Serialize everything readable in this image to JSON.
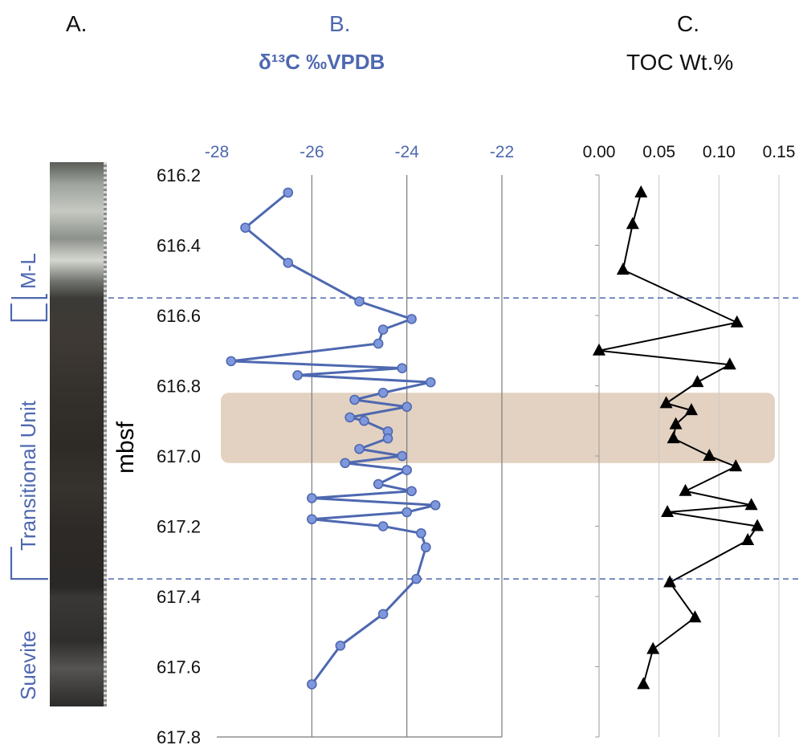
{
  "panels": {
    "a_letter": "A.",
    "b_letter": "B.",
    "b_title": "δ¹³C  ‰VPDB",
    "c_letter": "C.",
    "c_title": "TOC Wt.%"
  },
  "units": {
    "ml": "M-L",
    "transitional": "Transitional Unit",
    "suevite": "Suevite"
  },
  "colors": {
    "d13c_series": "#4e68b0",
    "toc_series": "#000000",
    "highlight_band": "#d9c3ac",
    "boundary_line": "#4e68b0"
  },
  "chart_data": [
    {
      "type": "line",
      "title": "δ¹³C  ‰VPDB",
      "ylabel": "mbsf",
      "xlim": [
        -28,
        -22
      ],
      "ylim": [
        617.8,
        616.2
      ],
      "x_ticks": [
        "-28",
        "-26",
        "-24",
        "-22"
      ],
      "y_ticks": [
        "616.2",
        "616.4",
        "616.6",
        "616.8",
        "617.0",
        "617.2",
        "617.4",
        "617.6",
        "617.8"
      ],
      "grid": true,
      "series": [
        {
          "marker": "circle",
          "points": [
            [
              -26.5,
              616.25
            ],
            [
              -27.4,
              616.35
            ],
            [
              -26.5,
              616.45
            ],
            [
              -25.0,
              616.56
            ],
            [
              -23.9,
              616.61
            ],
            [
              -24.5,
              616.64
            ],
            [
              -24.6,
              616.68
            ],
            [
              -27.7,
              616.73
            ],
            [
              -24.1,
              616.75
            ],
            [
              -26.3,
              616.77
            ],
            [
              -23.5,
              616.79
            ],
            [
              -24.5,
              616.82
            ],
            [
              -25.1,
              616.84
            ],
            [
              -24.0,
              616.86
            ],
            [
              -25.2,
              616.89
            ],
            [
              -24.9,
              616.9
            ],
            [
              -24.4,
              616.93
            ],
            [
              -24.4,
              616.95
            ],
            [
              -25.0,
              616.98
            ],
            [
              -24.1,
              617.0
            ],
            [
              -25.3,
              617.02
            ],
            [
              -24.0,
              617.04
            ],
            [
              -24.6,
              617.08
            ],
            [
              -23.9,
              617.1
            ],
            [
              -26.0,
              617.12
            ],
            [
              -23.4,
              617.14
            ],
            [
              -24.0,
              617.16
            ],
            [
              -26.0,
              617.18
            ],
            [
              -24.5,
              617.2
            ],
            [
              -23.7,
              617.22
            ],
            [
              -23.6,
              617.26
            ],
            [
              -23.8,
              617.35
            ],
            [
              -24.5,
              617.45
            ],
            [
              -25.4,
              617.54
            ],
            [
              -26.0,
              617.65
            ]
          ]
        }
      ]
    },
    {
      "type": "line",
      "title": "TOC Wt.%",
      "xlim": [
        0,
        0.15
      ],
      "ylim": [
        617.8,
        616.2
      ],
      "x_ticks": [
        "0.00",
        "0.05",
        "0.10",
        "0.15"
      ],
      "grid": true,
      "series": [
        {
          "marker": "triangle",
          "points": [
            [
              0.035,
              616.25
            ],
            [
              0.028,
              616.34
            ],
            [
              0.02,
              616.47
            ],
            [
              0.115,
              616.62
            ],
            [
              0.0,
              616.7
            ],
            [
              0.109,
              616.74
            ],
            [
              0.082,
              616.79
            ],
            [
              0.056,
              616.85
            ],
            [
              0.077,
              616.87
            ],
            [
              0.064,
              616.91
            ],
            [
              0.062,
              616.95
            ],
            [
              0.092,
              617.0
            ],
            [
              0.114,
              617.03
            ],
            [
              0.072,
              617.1
            ],
            [
              0.127,
              617.14
            ],
            [
              0.057,
              617.16
            ],
            [
              0.132,
              617.2
            ],
            [
              0.124,
              617.24
            ],
            [
              0.059,
              617.36
            ],
            [
              0.08,
              617.46
            ],
            [
              0.045,
              617.55
            ],
            [
              0.037,
              617.65
            ]
          ]
        }
      ]
    }
  ]
}
